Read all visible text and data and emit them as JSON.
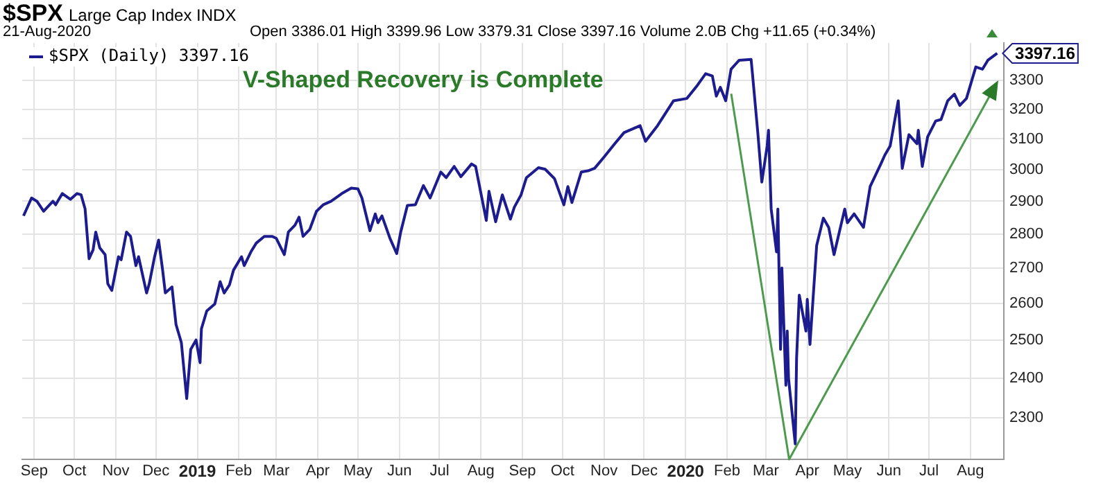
{
  "chart_data": {
    "type": "line",
    "title": "$SPX",
    "subtitle": "Large Cap Index  INDX",
    "annotations": [
      "21-Aug-2020",
      "Open 3386.01  High 3399.96  Low 3379.31  Close 3397.16  Volume 2.0B  Chg +11.65 (+0.34%)",
      "V-Shaped Recovery is Complete",
      {
        "text": "3397.16",
        "x": "2020-08-21",
        "y": 3397.16
      }
    ],
    "series": [
      {
        "name": "$SPX (Daily) 3397.16",
        "color": "#1c1c8f",
        "x": [
          "2018-08-24",
          "2018-08-30",
          "2018-09-03",
          "2018-09-08",
          "2018-09-15",
          "2018-09-17",
          "2018-09-22",
          "2018-09-28",
          "2018-10-03",
          "2018-10-06",
          "2018-10-09",
          "2018-10-12",
          "2018-10-15",
          "2018-10-17",
          "2018-10-20",
          "2018-10-24",
          "2018-10-26",
          "2018-10-29",
          "2018-11-03",
          "2018-11-05",
          "2018-11-09",
          "2018-11-12",
          "2018-11-16",
          "2018-11-18",
          "2018-11-24",
          "2018-11-26",
          "2018-11-30",
          "2018-12-03",
          "2018-12-06",
          "2018-12-08",
          "2018-12-13",
          "2018-12-16",
          "2018-12-20",
          "2018-12-24",
          "2018-12-27",
          "2018-12-31",
          "2019-01-03",
          "2019-01-04",
          "2019-01-08",
          "2019-01-14",
          "2019-01-18",
          "2019-01-21",
          "2019-01-25",
          "2019-01-28",
          "2019-02-03",
          "2019-02-05",
          "2019-02-10",
          "2019-02-14",
          "2019-02-20",
          "2019-02-26",
          "2019-03-01",
          "2019-03-07",
          "2019-03-10",
          "2019-03-15",
          "2019-03-18",
          "2019-03-21",
          "2019-03-26",
          "2019-03-31",
          "2019-04-05",
          "2019-04-11",
          "2019-04-19",
          "2019-04-26",
          "2019-05-01",
          "2019-05-04",
          "2019-05-10",
          "2019-05-14",
          "2019-05-16",
          "2019-05-19",
          "2019-05-25",
          "2019-05-30",
          "2019-06-02",
          "2019-06-07",
          "2019-06-13",
          "2019-06-19",
          "2019-06-24",
          "2019-07-02",
          "2019-07-06",
          "2019-07-12",
          "2019-07-17",
          "2019-07-25",
          "2019-07-28",
          "2019-08-05",
          "2019-08-07",
          "2019-08-12",
          "2019-08-17",
          "2019-08-23",
          "2019-08-26",
          "2019-08-31",
          "2019-09-04",
          "2019-09-13",
          "2019-09-18",
          "2019-09-25",
          "2019-10-02",
          "2019-10-05",
          "2019-10-08",
          "2019-10-15",
          "2019-10-20",
          "2019-10-25",
          "2019-11-01",
          "2019-11-09",
          "2019-11-16",
          "2019-11-28",
          "2019-12-02",
          "2019-12-11",
          "2019-12-23",
          "2020-01-02",
          "2020-01-10",
          "2020-01-16",
          "2020-01-21",
          "2020-01-24",
          "2020-01-27",
          "2020-01-31",
          "2020-02-04",
          "2020-02-10",
          "2020-02-19",
          "2020-02-20",
          "2020-02-24",
          "2020-02-27",
          "2020-03-02",
          "2020-03-03",
          "2020-03-05",
          "2020-03-09",
          "2020-03-10",
          "2020-03-12",
          "2020-03-13",
          "2020-03-16",
          "2020-03-17",
          "2020-03-18",
          "2020-03-23",
          "2020-03-24",
          "2020-03-26",
          "2020-03-31",
          "2020-04-01",
          "2020-04-03",
          "2020-04-08",
          "2020-04-13",
          "2020-04-17",
          "2020-04-21",
          "2020-04-29",
          "2020-05-01",
          "2020-05-06",
          "2020-05-13",
          "2020-05-18",
          "2020-05-26",
          "2020-05-29",
          "2020-06-02",
          "2020-06-08",
          "2020-06-11",
          "2020-06-16",
          "2020-06-22",
          "2020-06-23",
          "2020-06-26",
          "2020-06-30",
          "2020-07-06",
          "2020-07-10",
          "2020-07-15",
          "2020-07-20",
          "2020-07-24",
          "2020-07-29",
          "2020-08-05",
          "2020-08-10",
          "2020-08-14",
          "2020-08-21"
        ],
        "values": [
          2855,
          2910,
          2900,
          2869,
          2900,
          2889,
          2924,
          2906,
          2924,
          2920,
          2877,
          2727,
          2753,
          2806,
          2759,
          2739,
          2655,
          2636,
          2733,
          2724,
          2806,
          2793,
          2707,
          2733,
          2629,
          2655,
          2733,
          2782,
          2694,
          2629,
          2646,
          2542,
          2493,
          2348,
          2475,
          2500,
          2440,
          2530,
          2579,
          2598,
          2661,
          2629,
          2652,
          2694,
          2733,
          2707,
          2747,
          2773,
          2793,
          2793,
          2787,
          2739,
          2806,
          2827,
          2851,
          2793,
          2814,
          2869,
          2889,
          2900,
          2924,
          2941,
          2939,
          2910,
          2810,
          2861,
          2834,
          2855,
          2787,
          2742,
          2806,
          2887,
          2889,
          2949,
          2910,
          2992,
          2974,
          3010,
          2977,
          3018,
          3010,
          2841,
          2931,
          2837,
          2920,
          2845,
          2882,
          2920,
          2974,
          3006,
          3001,
          2971,
          2889,
          2946,
          2896,
          2992,
          2996,
          3004,
          3040,
          3084,
          3121,
          3144,
          3092,
          3144,
          3229,
          3237,
          3284,
          3324,
          3316,
          3245,
          3276,
          3229,
          3340,
          3372,
          3375,
          3324,
          3121,
          2960,
          3077,
          3129,
          2876,
          2747,
          2876,
          2475,
          2700,
          2382,
          2524,
          2399,
          2237,
          2452,
          2623,
          2524,
          2611,
          2488,
          2766,
          2848,
          2820,
          2739,
          2876,
          2834,
          2861,
          2820,
          2946,
          3018,
          3047,
          3077,
          3229,
          3004,
          3114,
          3084,
          3129,
          3010,
          3107,
          3160,
          3165,
          3229,
          3252,
          3213,
          3237,
          3348,
          3340,
          3372,
          3397.16
        ]
      }
    ],
    "xlim": [
      "2018-08-23",
      "2020-08-26"
    ],
    "xticks": [
      {
        "value": "2018-09-01",
        "label": "Sep"
      },
      {
        "value": "2018-10-01",
        "label": "Oct"
      },
      {
        "value": "2018-11-01",
        "label": "Nov"
      },
      {
        "value": "2018-12-01",
        "label": "Dec"
      },
      {
        "value": "2019-01-01",
        "label": "2019"
      },
      {
        "value": "2019-02-01",
        "label": "Feb"
      },
      {
        "value": "2019-03-01",
        "label": "Mar"
      },
      {
        "value": "2019-04-01",
        "label": "Apr"
      },
      {
        "value": "2019-05-01",
        "label": "May"
      },
      {
        "value": "2019-06-01",
        "label": "Jun"
      },
      {
        "value": "2019-07-01",
        "label": "Jul"
      },
      {
        "value": "2019-08-01",
        "label": "Aug"
      },
      {
        "value": "2019-09-01",
        "label": "Sep"
      },
      {
        "value": "2019-10-01",
        "label": "Oct"
      },
      {
        "value": "2019-11-01",
        "label": "Nov"
      },
      {
        "value": "2019-12-01",
        "label": "Dec"
      },
      {
        "value": "2020-01-01",
        "label": "2020"
      },
      {
        "value": "2020-02-01",
        "label": "Feb"
      },
      {
        "value": "2020-03-01",
        "label": "Mar"
      },
      {
        "value": "2020-04-01",
        "label": "Apr"
      },
      {
        "value": "2020-05-01",
        "label": "May"
      },
      {
        "value": "2020-06-01",
        "label": "Jun"
      },
      {
        "value": "2020-07-01",
        "label": "Jul"
      },
      {
        "value": "2020-08-01",
        "label": "Aug"
      }
    ],
    "ylim": [
      2200,
      3435
    ],
    "yticks": [
      2300,
      2400,
      2500,
      2600,
      2700,
      2800,
      2900,
      3000,
      3100,
      3200,
      3300
    ],
    "log": true,
    "grid": true,
    "legend": "top left",
    "marker": "none",
    "line_style": "solid"
  }
}
